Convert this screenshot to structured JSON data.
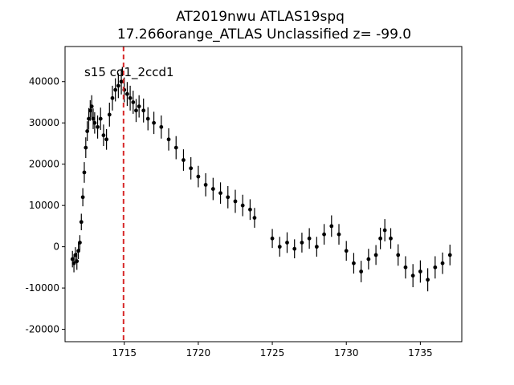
{
  "chart_data": {
    "type": "scatter",
    "title": "AT2019nwu  ATLAS19spq",
    "subtitle": "17.266orange_ATLAS Unclassified z= -99.0",
    "annotation": "s15 cd1_2ccd1",
    "xlabel": "",
    "ylabel": "",
    "xlim": [
      1711.0,
      1737.8
    ],
    "ylim": [
      -23000,
      48500
    ],
    "xticks": [
      1715,
      1720,
      1725,
      1730,
      1735
    ],
    "yticks": [
      -20000,
      -10000,
      0,
      10000,
      20000,
      30000,
      40000
    ],
    "grid": false,
    "legend": "none",
    "vline": {
      "x": 1714.95,
      "color": "#d62728",
      "style": "dashed"
    },
    "marker_color": "#000000",
    "series": [
      {
        "x": [
          1711.5,
          1711.6,
          1711.7,
          1711.8,
          1711.9,
          1712.0,
          1712.1,
          1712.2,
          1712.3,
          1712.4,
          1712.5,
          1712.6,
          1712.7,
          1712.8,
          1712.9,
          1713.0,
          1713.2,
          1713.4,
          1713.6,
          1713.8,
          1714.0,
          1714.2,
          1714.4,
          1714.6,
          1714.8,
          1715.0,
          1715.2,
          1715.4,
          1715.6,
          1715.8,
          1716.0,
          1716.3,
          1716.6,
          1717.0,
          1717.5,
          1718.0,
          1718.5,
          1719.0,
          1719.5,
          1720.0,
          1720.5,
          1721.0,
          1721.5,
          1722.0,
          1722.5,
          1723.0,
          1723.5,
          1723.8,
          1725.0,
          1725.5,
          1726.0,
          1726.5,
          1727.0,
          1727.5,
          1728.0,
          1728.5,
          1729.0,
          1729.5,
          1730.0,
          1730.5,
          1731.0,
          1731.5,
          1732.0,
          1732.3,
          1732.6,
          1733.0,
          1733.5,
          1734.0,
          1734.5,
          1735.0,
          1735.5,
          1736.0,
          1736.5,
          1737.0
        ],
        "y": [
          -3000,
          -4000,
          -2000,
          -3500,
          -1000,
          1000,
          6000,
          12000,
          18000,
          24000,
          28000,
          31000,
          33000,
          34000,
          31000,
          30000,
          29000,
          31000,
          27000,
          26000,
          32000,
          36000,
          38000,
          39000,
          40000,
          38000,
          37000,
          36000,
          35000,
          33000,
          34000,
          33000,
          31000,
          30000,
          29000,
          26000,
          24000,
          21000,
          19000,
          17000,
          15000,
          14000,
          13000,
          12000,
          11000,
          10000,
          9000,
          7000,
          2000,
          0,
          1000,
          -500,
          1000,
          2000,
          0,
          3000,
          5000,
          3000,
          -1000,
          -4000,
          -6000,
          -3000,
          -2000,
          2000,
          4000,
          2000,
          -2000,
          -5000,
          -7000,
          -6000,
          -8000,
          -5000,
          -4000,
          -2000
        ],
        "err": [
          2000,
          2200,
          1900,
          2100,
          2000,
          1800,
          2000,
          2200,
          2500,
          2500,
          2400,
          2600,
          2500,
          2700,
          2500,
          2600,
          2800,
          2700,
          2600,
          2500,
          2900,
          3000,
          2800,
          3000,
          3100,
          3000,
          2900,
          3000,
          2800,
          2800,
          2700,
          2900,
          2800,
          2700,
          2800,
          2700,
          2800,
          2600,
          2700,
          2600,
          2800,
          2700,
          2600,
          2700,
          2800,
          2600,
          2500,
          2400,
          2300,
          2400,
          2500,
          2300,
          2400,
          2500,
          2400,
          2500,
          2600,
          2500,
          2400,
          2500,
          2600,
          2500,
          2400,
          2600,
          2700,
          2500,
          2600,
          2700,
          2800,
          2700,
          2800,
          2700,
          2600,
          2500
        ]
      }
    ]
  }
}
